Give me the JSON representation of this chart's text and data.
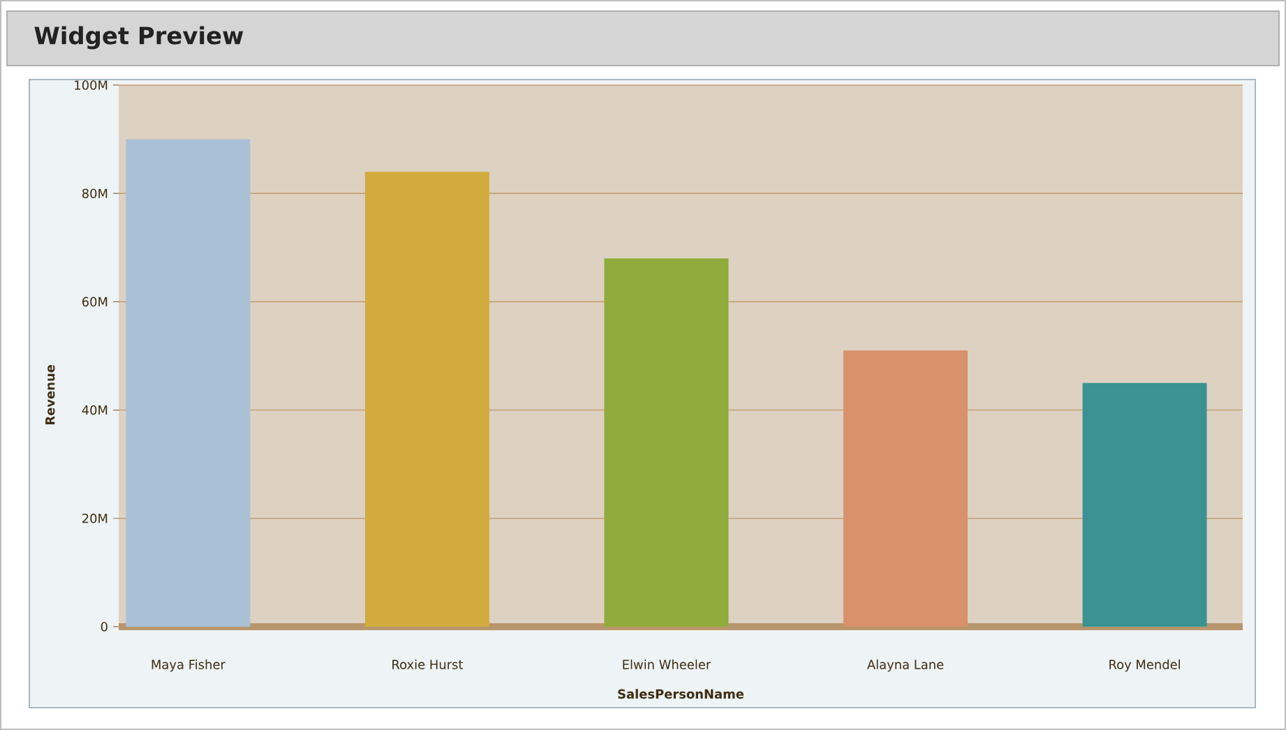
{
  "chart_data": {
    "type": "bar",
    "title": "Widget Preview",
    "xlabel": "SalesPersonName",
    "ylabel": "Revenue",
    "categories": [
      "Maya Fisher",
      "Roxie Hurst",
      "Elwin Wheeler",
      "Alayna Lane",
      "Roy Mendel"
    ],
    "values": [
      90,
      84,
      68,
      51,
      45
    ],
    "colors": [
      "#a9c0d6",
      "#d2ab3e",
      "#8fab3c",
      "#d8916a",
      "#3a9292"
    ],
    "ylim": [
      0,
      100
    ],
    "yticks": [
      0,
      {
        "value": 20,
        "label": "20M"
      },
      {
        "value": 40,
        "label": "40M"
      },
      {
        "value": 60,
        "label": "60M"
      },
      {
        "value": 80,
        "label": "80M"
      },
      {
        "value": 100,
        "label": "100M"
      }
    ],
    "grid": "y"
  }
}
